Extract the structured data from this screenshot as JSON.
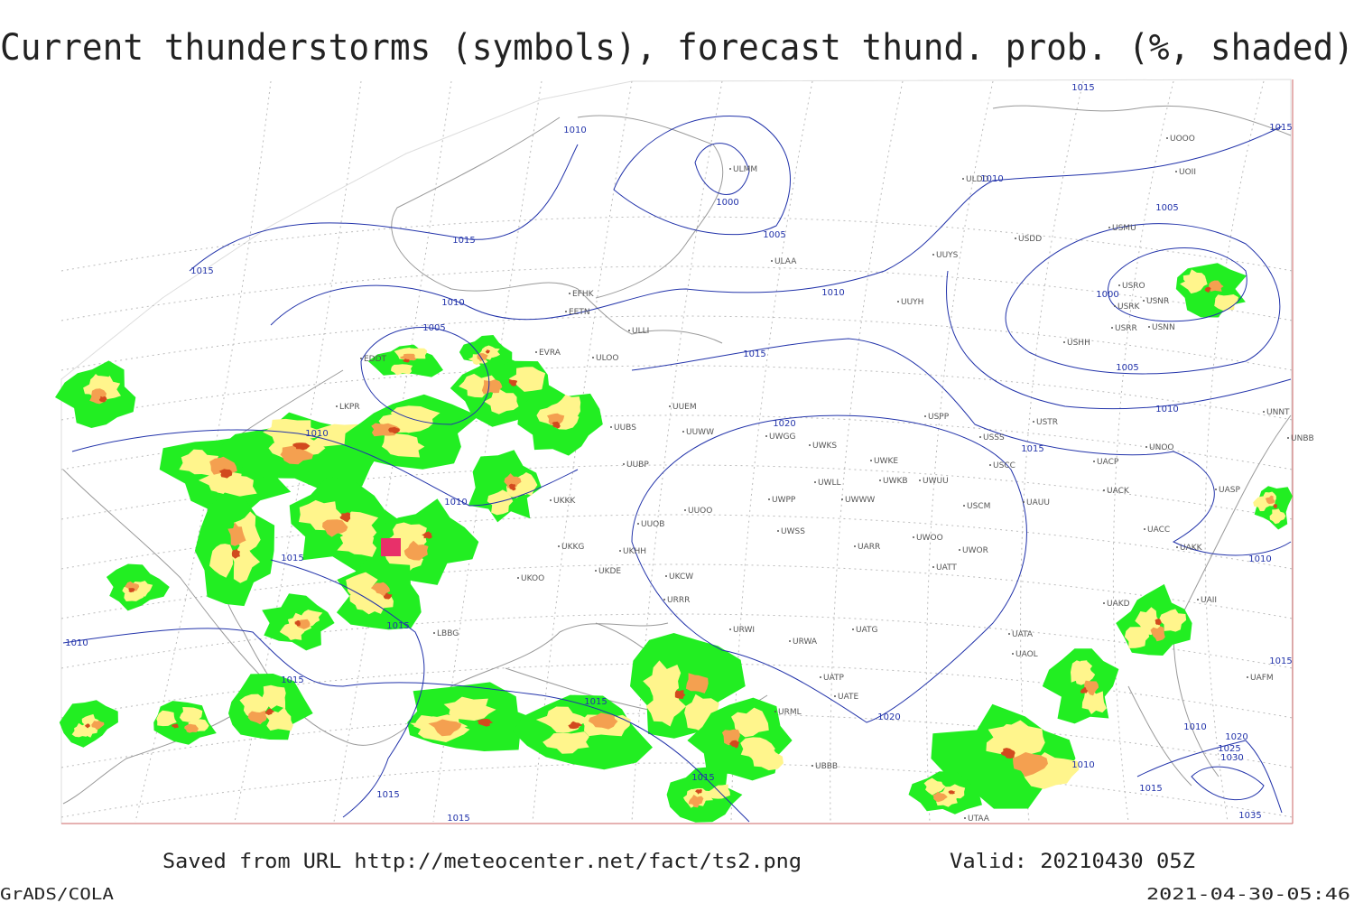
{
  "header": {
    "title": "Current thunderstorms (symbols), forecast thund. prob. (%, shaded)"
  },
  "footer": {
    "source": "Saved from URL http://meteocenter.net/fact/ts2.png",
    "valid": "Valid: 20210430 05Z",
    "software": "GrADS/COLA",
    "timestamp": "2021-04-30-05:46"
  },
  "isobar_labels": [
    1010,
    1000,
    1005,
    1015,
    1015,
    1010,
    1010,
    1005,
    1015,
    1015,
    1010,
    1005,
    1000,
    1005,
    1010,
    1015,
    1020,
    1015,
    1010,
    1010,
    1015,
    1015,
    1010,
    1015,
    1015,
    1020,
    1015,
    1015,
    1015,
    1010,
    1015,
    1010,
    1020,
    1025,
    1030,
    1035,
    1015,
    1010
  ],
  "stations": [
    "ULMM",
    "ULAA",
    "UUYS",
    "UUYH",
    "ULDD",
    "USDD",
    "USMU",
    "UOOO",
    "UOII",
    "USRO",
    "USRK",
    "USNR",
    "USRR",
    "USNN",
    "USHH",
    "EFHK",
    "EETN",
    "ULLI",
    "ULOO",
    "EVRA",
    "UUEM",
    "UUWW",
    "UUBS",
    "UUBP",
    "UKKK",
    "UKHH",
    "UKDE",
    "UKOO",
    "UUOO",
    "UUOB",
    "UKKG",
    "UKCW",
    "URRR",
    "URWI",
    "URWA",
    "UATG",
    "UATP",
    "UATE",
    "UBBB",
    "UTAA",
    "UWGG",
    "UWKS",
    "UWKE",
    "UWKB",
    "UWUU",
    "UWLL",
    "UWWW",
    "UWPP",
    "UWSS",
    "UWOO",
    "UWOR",
    "UARR",
    "UATT",
    "USCM",
    "UAUU",
    "USCC",
    "USSS",
    "USTR",
    "USPP",
    "UACK",
    "UACP",
    "UNOO",
    "UASP",
    "UACC",
    "UAKK",
    "UAKD",
    "UAII",
    "UATA",
    "UAOL",
    "URML",
    "UNNT",
    "UNBB",
    "UAFM",
    "LKPR",
    "EDDT",
    "LBBG"
  ]
}
